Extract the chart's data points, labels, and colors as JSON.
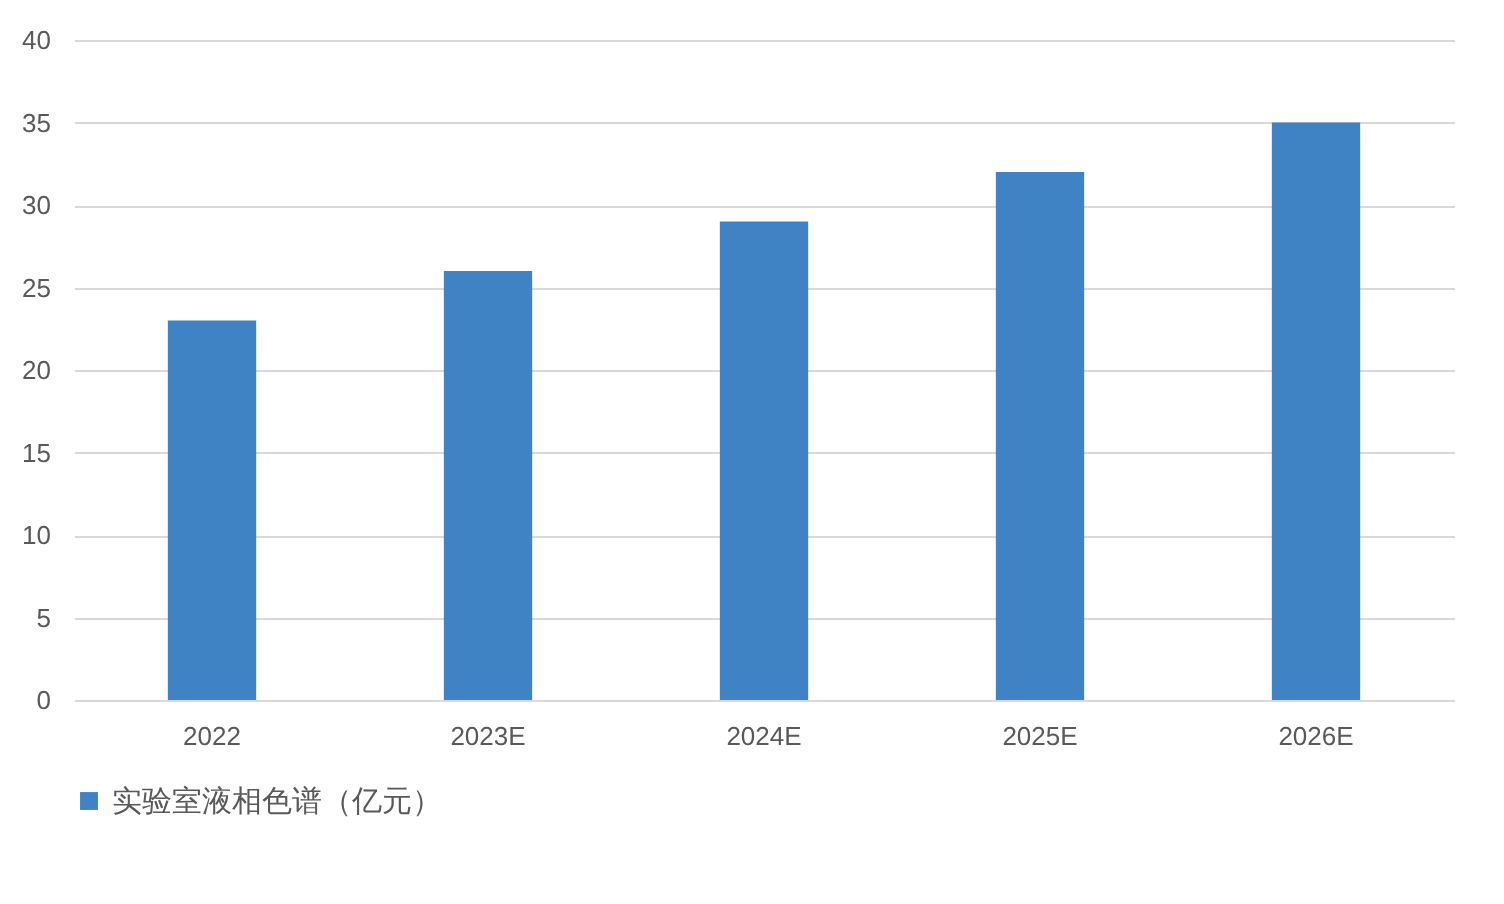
{
  "chart_data": {
    "type": "bar",
    "categories": [
      "2022",
      "2023E",
      "2024E",
      "2025E",
      "2026E"
    ],
    "series": [
      {
        "name": "实验室液相色谱（亿元）",
        "color": "#3f83c4",
        "values": [
          23,
          26,
          29,
          32,
          35
        ]
      }
    ],
    "ylim": [
      0,
      40
    ],
    "yticks": [
      0,
      5,
      10,
      15,
      20,
      25,
      30,
      35,
      40
    ],
    "grid": "y",
    "legend": "bottom"
  }
}
